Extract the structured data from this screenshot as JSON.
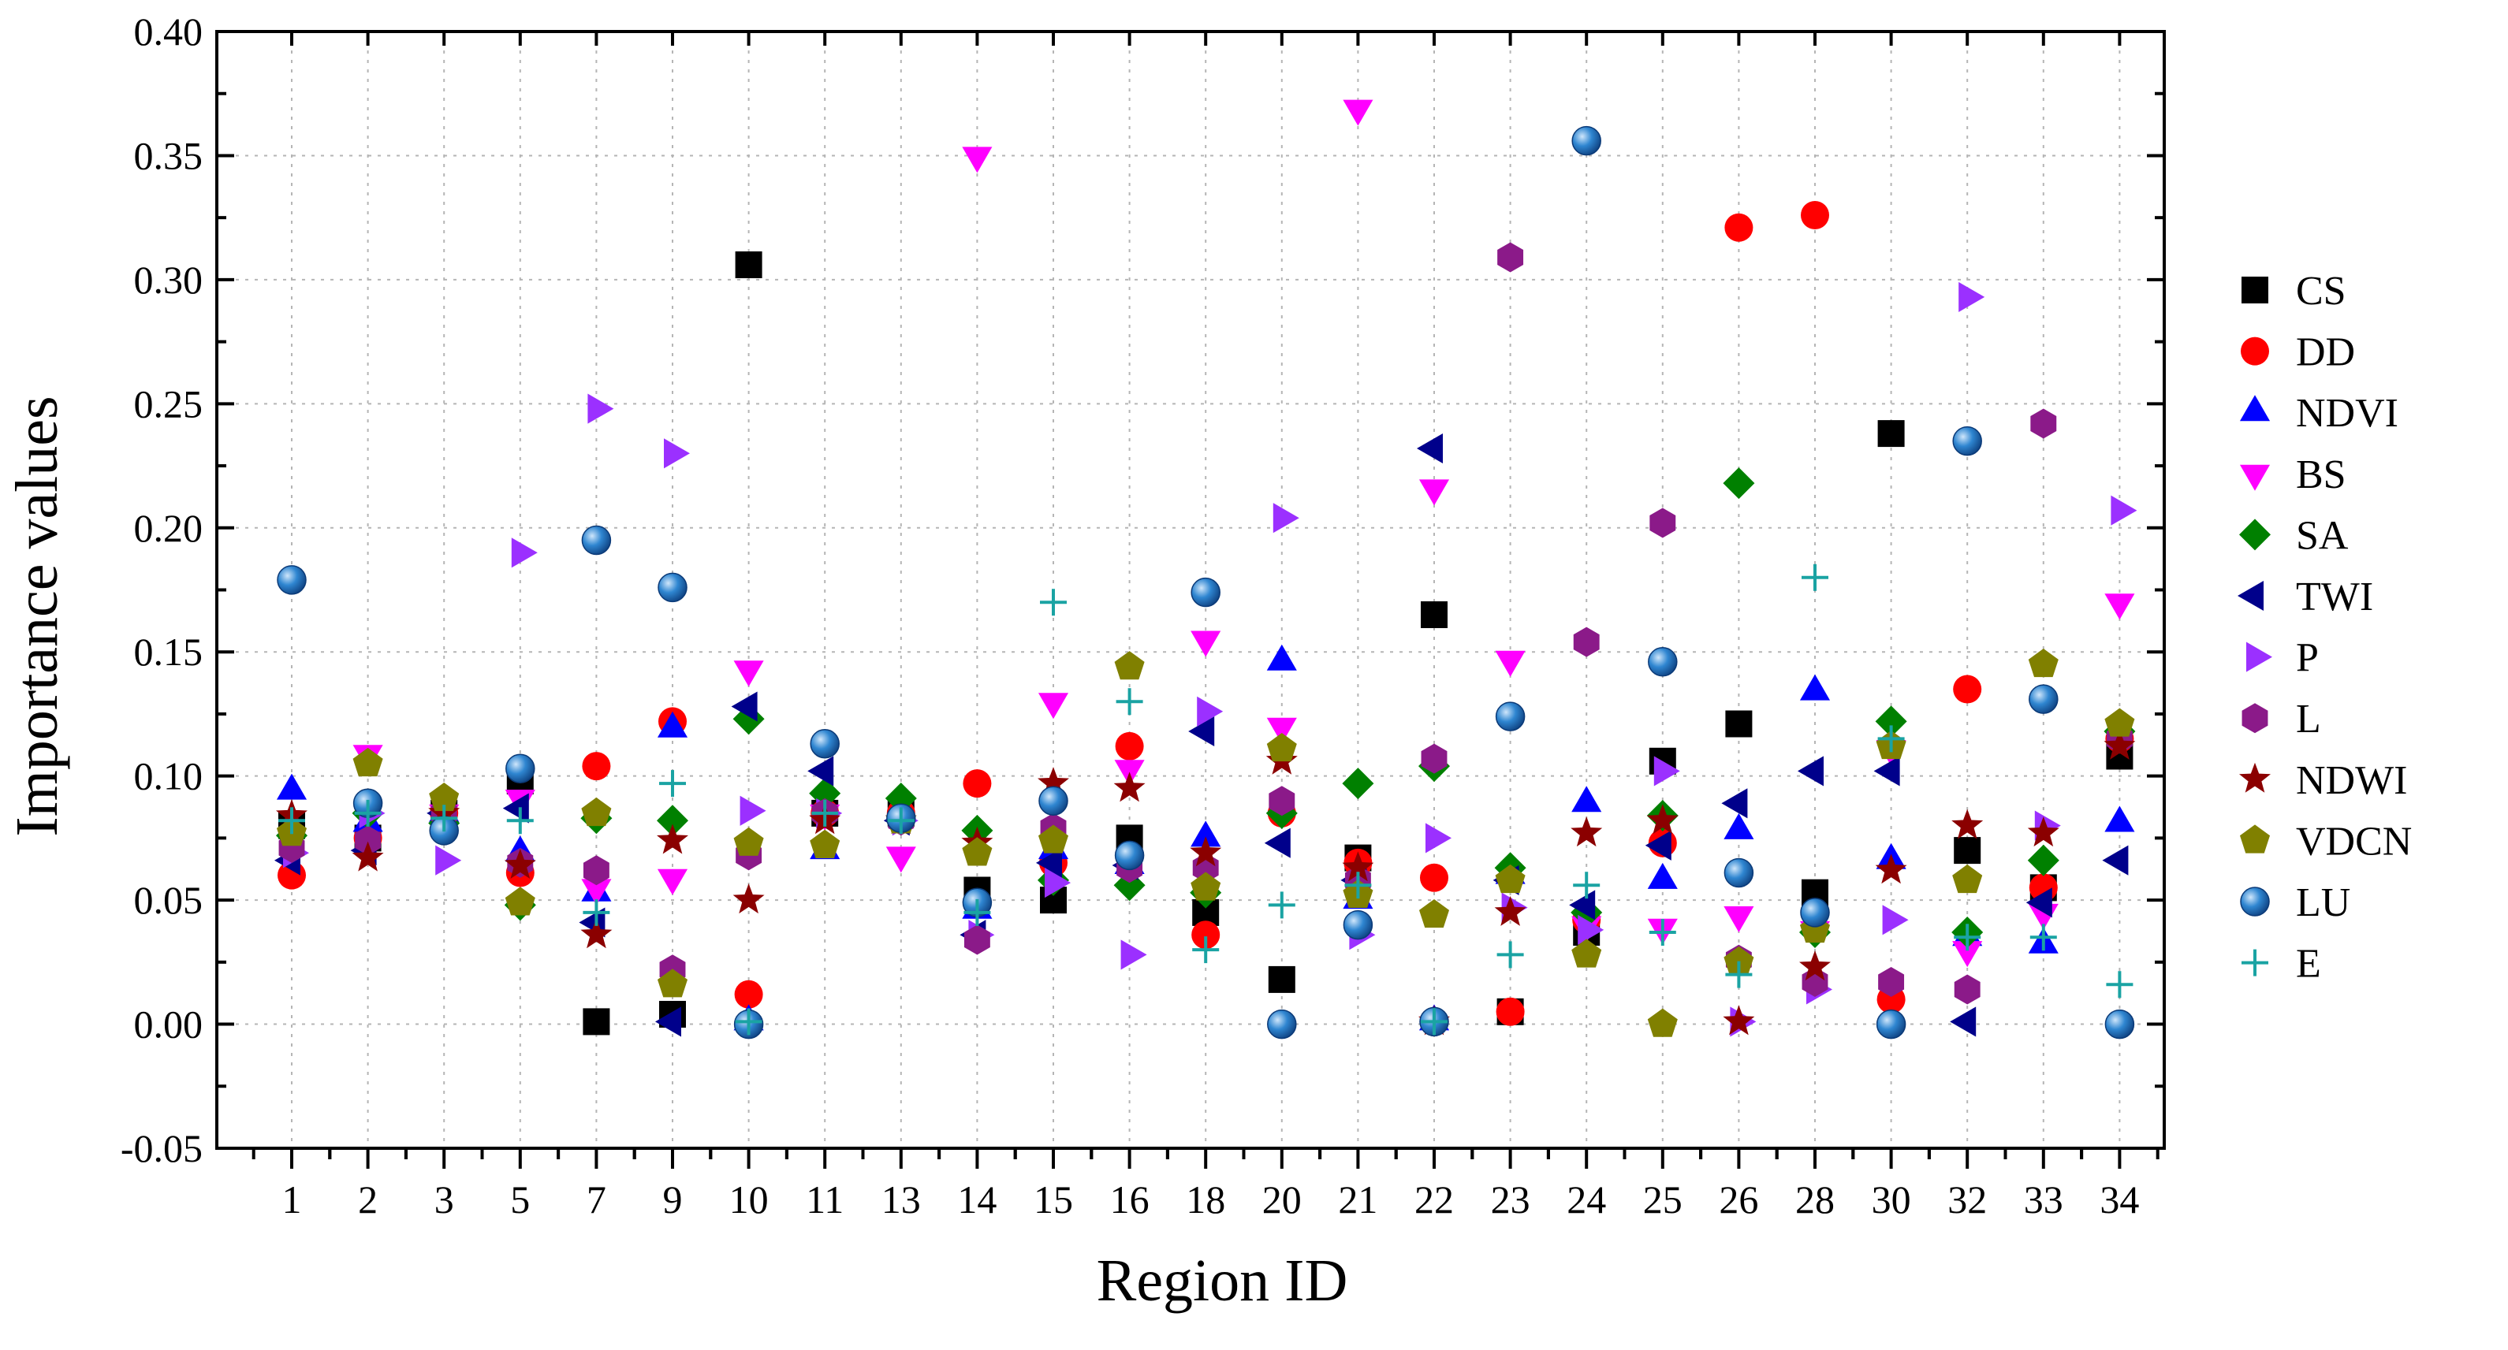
{
  "chart_data": {
    "type": "scatter",
    "title": "",
    "xlabel": "Region ID",
    "ylabel": "Importance values",
    "ylim": [
      -0.05,
      0.4
    ],
    "yticks": [
      "-0.05",
      "0.00",
      "0.05",
      "0.10",
      "0.15",
      "0.20",
      "0.25",
      "0.30",
      "0.35",
      "0.40"
    ],
    "categories": [
      "1",
      "2",
      "3",
      "5",
      "7",
      "9",
      "10",
      "11",
      "13",
      "14",
      "15",
      "16",
      "18",
      "20",
      "21",
      "22",
      "23",
      "24",
      "25",
      "26",
      "28",
      "30",
      "32",
      "33",
      "34"
    ],
    "grid": true,
    "legend_position": "right",
    "series": [
      {
        "name": "CS",
        "marker": "square",
        "color": "#000000",
        "values": [
          0.08,
          0.075,
          0.085,
          0.098,
          0.001,
          0.004,
          0.306,
          0.085,
          0.085,
          0.054,
          0.05,
          0.075,
          0.045,
          0.018,
          0.067,
          0.165,
          0.005,
          0.037,
          0.106,
          0.121,
          0.053,
          0.238,
          0.07,
          0.055,
          0.108
        ]
      },
      {
        "name": "DD",
        "marker": "circle",
        "color": "#ff0000",
        "values": [
          0.06,
          0.075,
          0.085,
          0.061,
          0.104,
          0.122,
          0.012,
          0.085,
          0.085,
          0.097,
          0.065,
          0.112,
          0.036,
          0.085,
          0.065,
          0.059,
          0.005,
          0.042,
          0.073,
          0.321,
          0.326,
          0.01,
          0.135,
          0.055,
          0.115
        ]
      },
      {
        "name": "NDVI",
        "marker": "triangle-up",
        "color": "#0000ff",
        "values": [
          0.094,
          0.081,
          0.085,
          0.069,
          0.053,
          0.119,
          0.001,
          0.07,
          0.085,
          0.046,
          0.07,
          0.064,
          0.075,
          0.146,
          0.05,
          0.001,
          0.06,
          0.089,
          0.058,
          0.078,
          0.134,
          0.066,
          0.035,
          0.032,
          0.081
        ]
      },
      {
        "name": "BS",
        "marker": "triangle-down",
        "color": "#ff00ff",
        "values": [
          0.073,
          0.109,
          0.085,
          0.091,
          0.055,
          0.059,
          0.143,
          0.085,
          0.068,
          0.35,
          0.13,
          0.103,
          0.155,
          0.12,
          0.369,
          0.216,
          0.147,
          0.04,
          0.039,
          0.044,
          0.038,
          0.111,
          0.03,
          0.045,
          0.17
        ]
      },
      {
        "name": "SA",
        "marker": "diamond",
        "color": "#008000",
        "values": [
          0.076,
          0.085,
          0.081,
          0.048,
          0.083,
          0.082,
          0.123,
          0.093,
          0.091,
          0.078,
          0.058,
          0.056,
          0.053,
          0.085,
          0.097,
          0.104,
          0.063,
          0.045,
          0.084,
          0.218,
          0.037,
          0.122,
          0.037,
          0.066,
          0.118
        ]
      },
      {
        "name": "TWI",
        "marker": "triangle-left",
        "color": "#00008b",
        "values": [
          0.066,
          0.07,
          0.085,
          0.087,
          0.041,
          0.001,
          0.128,
          0.102,
          0.082,
          0.036,
          0.065,
          0.064,
          0.118,
          0.073,
          0.058,
          0.232,
          0.058,
          0.048,
          0.072,
          0.089,
          0.102,
          0.102,
          0.001,
          0.049,
          0.066
        ]
      },
      {
        "name": "P",
        "marker": "triangle-right",
        "color": "#9b30ff",
        "values": [
          0.069,
          0.085,
          0.066,
          0.19,
          0.248,
          0.23,
          0.086,
          0.085,
          0.082,
          0.036,
          0.057,
          0.028,
          0.126,
          0.204,
          0.036,
          0.075,
          0.047,
          0.038,
          0.102,
          0.001,
          0.014,
          0.042,
          0.293,
          0.08,
          0.207
        ]
      },
      {
        "name": "L",
        "marker": "hexagon",
        "color": "#8b1a89",
        "values": [
          0.071,
          0.074,
          0.085,
          0.065,
          0.062,
          0.022,
          0.068,
          0.085,
          0.082,
          0.034,
          0.079,
          0.063,
          0.063,
          0.09,
          0.058,
          0.107,
          0.309,
          0.154,
          0.202,
          0.026,
          0.017,
          0.017,
          0.014,
          0.242,
          0.115
        ]
      },
      {
        "name": "NDWI",
        "marker": "star",
        "color": "#8b0000",
        "values": [
          0.084,
          0.067,
          0.085,
          0.064,
          0.036,
          0.074,
          0.05,
          0.082,
          0.082,
          0.073,
          0.097,
          0.095,
          0.069,
          0.106,
          0.063,
          0.001,
          0.045,
          0.077,
          0.082,
          0.001,
          0.023,
          0.062,
          0.08,
          0.077,
          0.112
        ]
      },
      {
        "name": "VDCN",
        "marker": "pentagon",
        "color": "#808000",
        "values": [
          0.077,
          0.105,
          0.091,
          0.049,
          0.085,
          0.016,
          0.073,
          0.072,
          0.082,
          0.069,
          0.074,
          0.144,
          0.055,
          0.111,
          0.052,
          0.044,
          0.058,
          0.028,
          0.0,
          0.025,
          0.038,
          0.112,
          0.058,
          0.145,
          0.121
        ]
      },
      {
        "name": "LU",
        "marker": "ball",
        "color": "#1f6fb5",
        "values": [
          0.179,
          0.089,
          0.078,
          0.103,
          0.195,
          0.176,
          0.0,
          0.113,
          0.083,
          0.049,
          0.09,
          0.068,
          0.174,
          0.0,
          0.04,
          0.001,
          0.124,
          0.356,
          0.146,
          0.061,
          0.045,
          0.0,
          0.235,
          0.131,
          0.0
        ]
      },
      {
        "name": "E",
        "marker": "plus",
        "color": "#1aa3a3",
        "values": [
          0.082,
          0.085,
          0.083,
          0.082,
          0.045,
          0.097,
          0.001,
          0.085,
          0.082,
          0.045,
          0.17,
          0.13,
          0.03,
          0.048,
          0.056,
          0.001,
          0.028,
          0.056,
          0.037,
          0.02,
          0.18,
          0.115,
          0.035,
          0.035,
          0.016
        ]
      }
    ]
  }
}
